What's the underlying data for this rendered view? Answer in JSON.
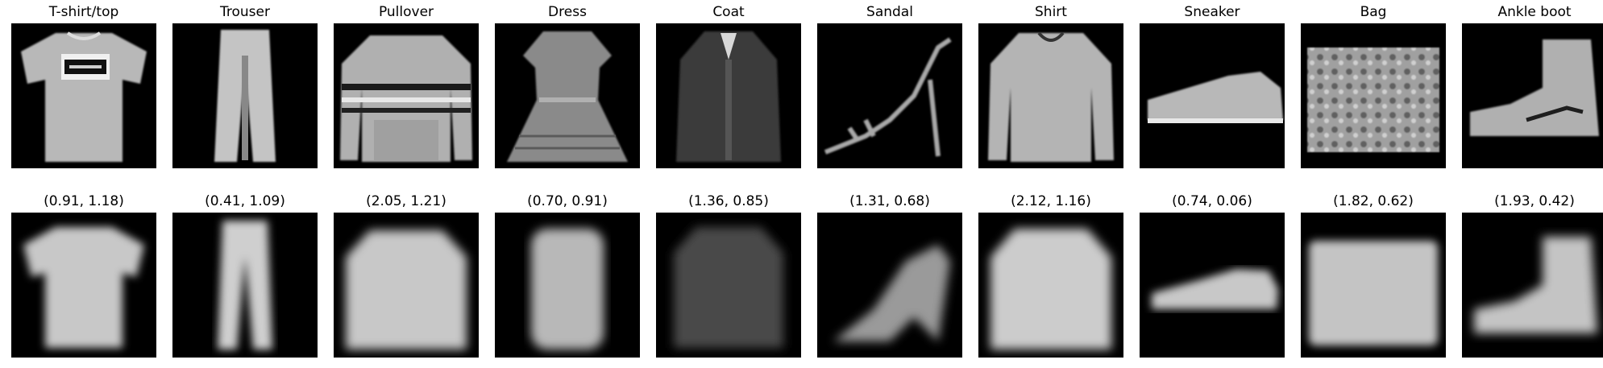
{
  "figure": {
    "top_row_titles": [
      "T-shirt/top",
      "Trouser",
      "Pullover",
      "Dress",
      "Coat",
      "Sandal",
      "Shirt",
      "Sneaker",
      "Bag",
      "Ankle boot"
    ],
    "bottom_row_titles": [
      "(0.91, 1.18)",
      "(0.41, 1.09)",
      "(2.05, 1.21)",
      "(0.70, 0.91)",
      "(1.36, 0.85)",
      "(1.31, 0.68)",
      "(2.12, 1.16)",
      "(0.74, 0.06)",
      "(1.82, 0.62)",
      "(1.93, 0.42)"
    ],
    "top_row_kind": "original grayscale images",
    "bottom_row_kind": "reconstructed grayscale images"
  },
  "colors": {
    "tile_background": "#000000",
    "page_background": "#ffffff"
  }
}
